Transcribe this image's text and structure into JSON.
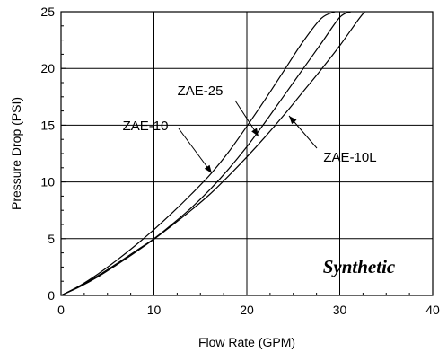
{
  "chart_data": {
    "type": "line",
    "xlabel": "Flow Rate (GPM)",
    "ylabel": "Pressure Drop (PSI)",
    "xlim": [
      0,
      40
    ],
    "ylim": [
      0,
      25
    ],
    "x_ticks": [
      0,
      10,
      20,
      30,
      40
    ],
    "y_ticks": [
      0,
      5,
      10,
      15,
      20,
      25
    ],
    "x_tick_labels": [
      "0",
      "10",
      "20",
      "30",
      "40"
    ],
    "y_tick_labels": [
      "0",
      "5",
      "10",
      "15",
      "20",
      "25"
    ],
    "grid": true,
    "series": [
      {
        "name": "ZAE-10",
        "x": [
          0,
          2,
          4,
          6,
          8,
          10,
          12,
          14,
          16,
          18,
          20,
          22,
          24,
          26,
          28,
          29.5
        ],
        "y": [
          0,
          0.85,
          1.9,
          3.1,
          4.4,
          5.8,
          7.3,
          8.9,
          10.6,
          12.6,
          14.9,
          17.3,
          19.8,
          22.3,
          24.4,
          25
        ]
      },
      {
        "name": "ZAE-25",
        "x": [
          0,
          2,
          4,
          6,
          8,
          10,
          12,
          14,
          16,
          18,
          20,
          22,
          24,
          26,
          28,
          30,
          31.2
        ],
        "y": [
          0,
          0.8,
          1.75,
          2.8,
          3.9,
          5.0,
          6.3,
          7.7,
          9.3,
          11.1,
          13.1,
          15.3,
          17.6,
          19.9,
          22.2,
          24.5,
          25
        ]
      },
      {
        "name": "ZAE-10L",
        "x": [
          0,
          2,
          4,
          6,
          8,
          10,
          12,
          14,
          16,
          18,
          20,
          22,
          24,
          26,
          28,
          30,
          32,
          32.7
        ],
        "y": [
          0,
          0.75,
          1.65,
          2.7,
          3.8,
          4.95,
          6.2,
          7.5,
          8.9,
          10.5,
          12.2,
          14.0,
          15.9,
          17.9,
          19.9,
          22.0,
          24.3,
          25
        ]
      }
    ],
    "annotations": [
      {
        "text": "ZAE-10",
        "target_series": "ZAE-10"
      },
      {
        "text": "ZAE-25",
        "target_series": "ZAE-25"
      },
      {
        "text": "ZAE-10L",
        "target_series": "ZAE-10L"
      },
      {
        "text": "Synthetic"
      }
    ]
  }
}
